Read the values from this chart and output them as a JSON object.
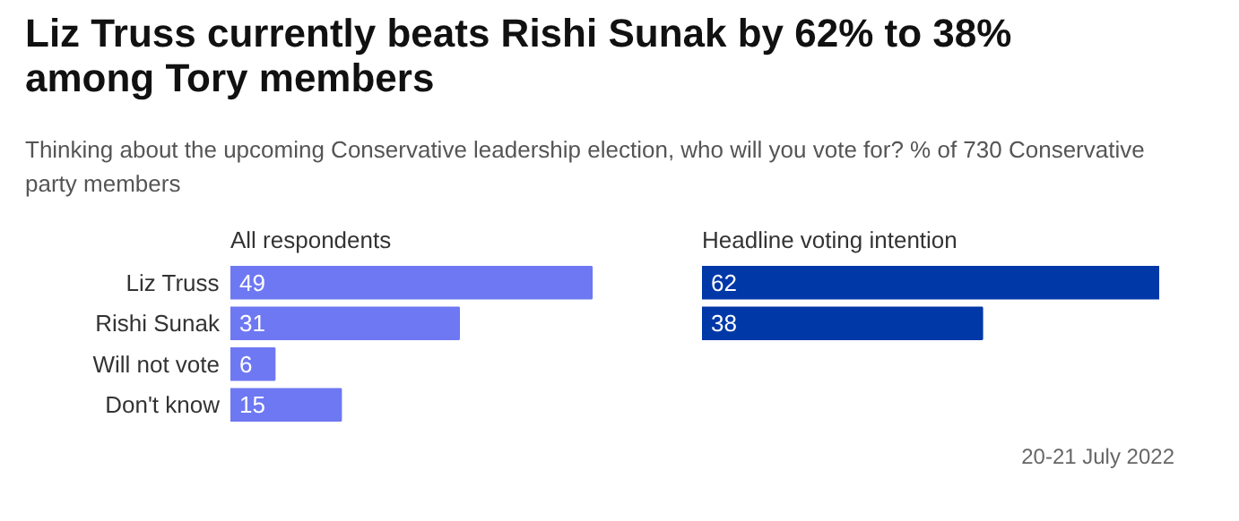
{
  "chart_data": [
    {
      "type": "bar",
      "orientation": "horizontal",
      "title": "Liz Truss currently beats Rishi Sunak by 62% to 38% among Tory members",
      "subtitle": "Thinking about the upcoming Conservative leadership election, who will you vote for? % of 730 Conservative party members",
      "annotations": [
        "All respondents"
      ],
      "categories": [
        "Liz Truss",
        "Rishi Sunak",
        "Will not vote",
        "Don't know"
      ],
      "values": [
        49,
        31,
        6,
        15
      ],
      "color": "#6e78f2",
      "data_labels": true,
      "grid": false
    },
    {
      "type": "bar",
      "orientation": "horizontal",
      "title": "Headline voting intention",
      "annotations": [
        "20-21 July 2022"
      ],
      "categories": [
        null,
        null
      ],
      "values": [
        62,
        38
      ],
      "color": "#0038a8",
      "data_labels": true,
      "grid": false
    }
  ]
}
